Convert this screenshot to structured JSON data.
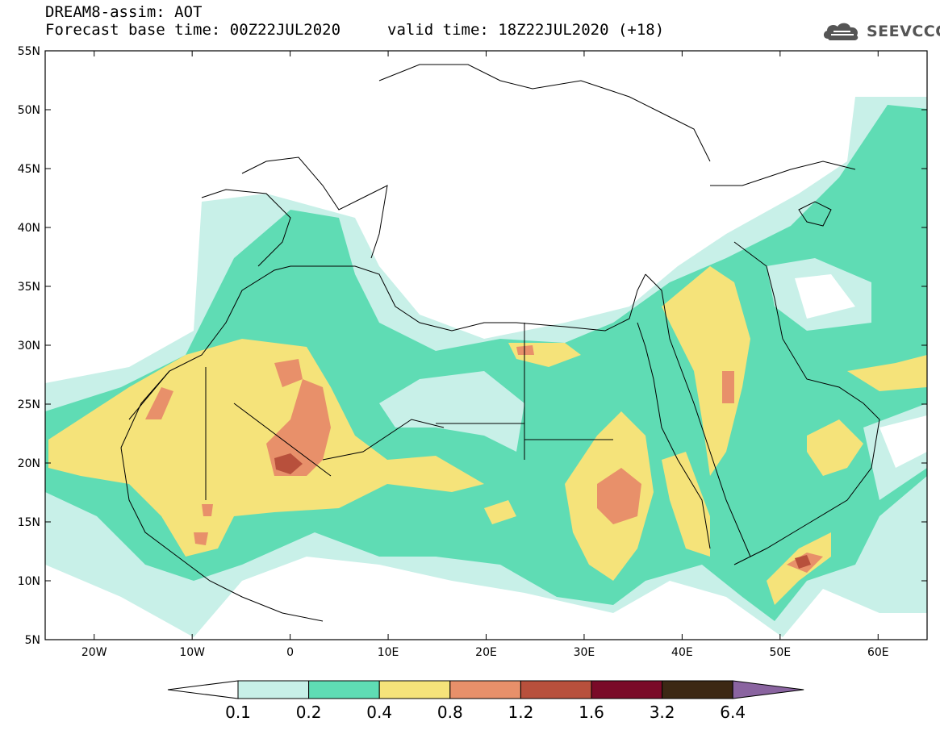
{
  "header": {
    "title": "DREAM8-assim: AOT",
    "base_time": "Forecast base time: 00Z22JUL2020",
    "valid_time": "valid time: 18Z22JUL2020 (+18)",
    "logo_text": "SEEVCCC"
  },
  "map": {
    "lon_range": [
      -25,
      65
    ],
    "lat_range": [
      5,
      55
    ],
    "lat_labels": [
      "55N",
      "50N",
      "45N",
      "40N",
      "35N",
      "30N",
      "25N",
      "20N",
      "15N",
      "10N",
      "5N"
    ],
    "lat_values": [
      55,
      50,
      45,
      40,
      35,
      30,
      25,
      20,
      15,
      10,
      5
    ],
    "lon_labels": [
      "20W",
      "10W",
      "0",
      "10E",
      "20E",
      "30E",
      "40E",
      "50E",
      "60E"
    ],
    "lon_values": [
      -20,
      -10,
      0,
      10,
      20,
      30,
      40,
      50,
      60
    ]
  },
  "colorbar": {
    "labels": [
      "0.1",
      "0.2",
      "0.4",
      "0.8",
      "1.2",
      "1.6",
      "3.2",
      "6.4"
    ],
    "colors": [
      "#c8f0e8",
      "#5fdcb4",
      "#f5e37a",
      "#e8906a",
      "#b8503c",
      "#7a0a28",
      "#3c2814",
      "#8a64a0"
    ]
  }
}
